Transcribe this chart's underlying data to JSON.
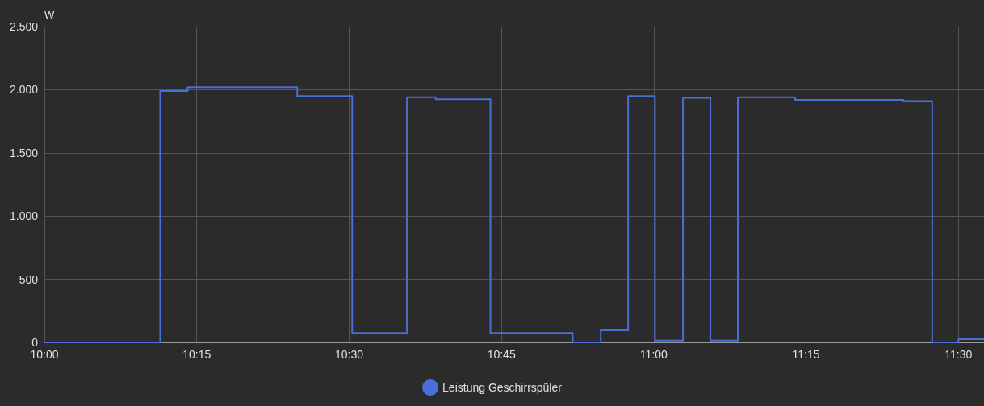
{
  "chart_data": {
    "type": "step",
    "ylabel": "W",
    "x": [
      10,
      10.19,
      10.235,
      10.415,
      10.505,
      10.595,
      10.642,
      10.732,
      10.867,
      10.913,
      10.958,
      11.002,
      11.048,
      11.093,
      11.138,
      11.232,
      11.41,
      11.457,
      11.5,
      11.542
    ],
    "series": [
      {
        "name": "Leistung Geschirrspüler",
        "color": "#4a6fd8",
        "values": [
          0,
          1990,
          2020,
          1950,
          75,
          1940,
          1925,
          75,
          0,
          95,
          1950,
          15,
          1935,
          15,
          1940,
          1920,
          1910,
          0,
          25,
          25
        ]
      }
    ],
    "xlim": [
      10,
      11.542
    ],
    "xticks": [
      {
        "value": 10,
        "label": "10:00"
      },
      {
        "value": 10.25,
        "label": "10:15"
      },
      {
        "value": 10.5,
        "label": "10:30"
      },
      {
        "value": 10.75,
        "label": "10:45"
      },
      {
        "value": 11,
        "label": "11:00"
      },
      {
        "value": 11.25,
        "label": "11:15"
      },
      {
        "value": 11.5,
        "label": "11:30"
      }
    ],
    "ylim": [
      0,
      2500
    ],
    "yticks": [
      0,
      500,
      {
        "value": 1000,
        "label": "1.000"
      },
      {
        "value": 1500,
        "label": "1.500"
      },
      {
        "value": 2000,
        "label": "2.000"
      },
      {
        "value": 2500,
        "label": "2.500"
      }
    ],
    "grid": true,
    "legend": "bottom",
    "marker": "none",
    "line_style": "solid"
  }
}
